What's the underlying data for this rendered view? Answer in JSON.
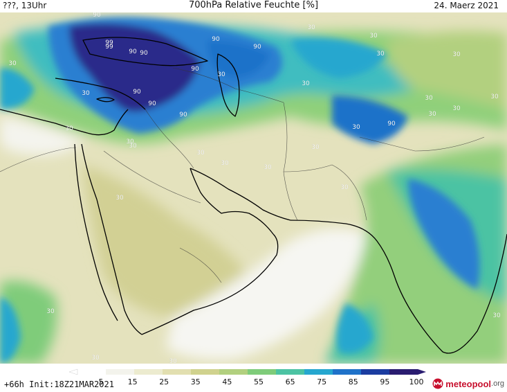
{
  "header": {
    "left": "???, 13Uhr",
    "title": "700hPa Relative Feuchte [%]",
    "date": "24. Maerz 2021"
  },
  "map": {
    "contour_labels": [
      "30",
      "90",
      "99"
    ]
  },
  "legend": {
    "ticks": [
      "5",
      "15",
      "25",
      "35",
      "45",
      "55",
      "65",
      "75",
      "85",
      "95",
      "100"
    ],
    "colors": [
      "#ffffff",
      "#f3f3ec",
      "#ecebcf",
      "#e2dfb0",
      "#d0d28e",
      "#b2d07f",
      "#7fcc7a",
      "#4cc3a3",
      "#26a7cf",
      "#1f72c9",
      "#1b3ca0",
      "#2a1c70"
    ]
  },
  "footer": {
    "init": "+66h Init:18Z21MAR2021",
    "brand_main": "meteopool",
    "brand_suffix": ".org"
  },
  "colors": {
    "dry": "#e8e6c2",
    "white_dry": "#f6f6f1",
    "mid": "#cfd394",
    "green": "#8fd07a",
    "cyan": "#3fbdc0",
    "blue": "#2a7fd1",
    "navy": "#2a2a8a",
    "brand_red": "#c8102e"
  }
}
